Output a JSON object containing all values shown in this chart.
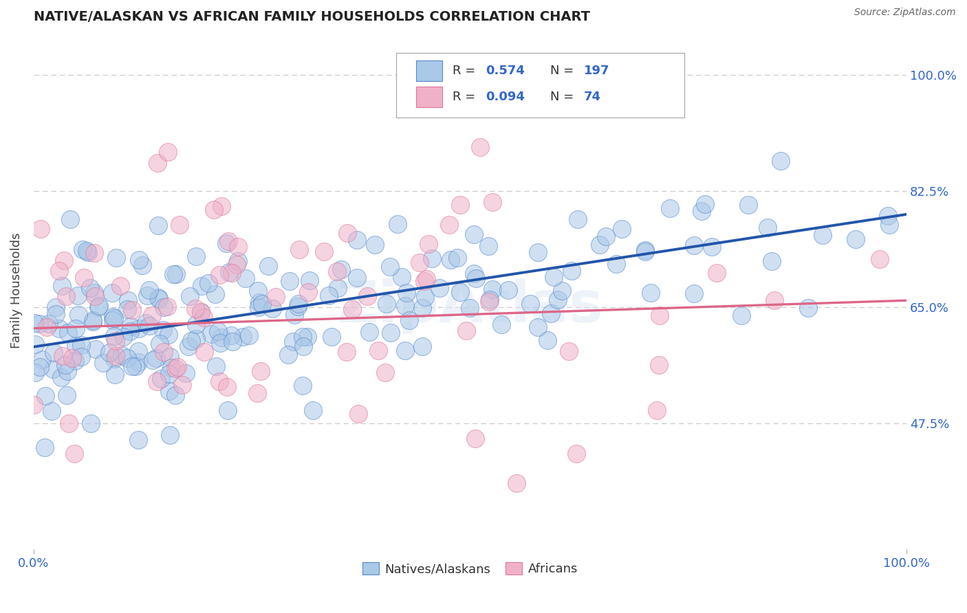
{
  "title": "NATIVE/ALASKAN VS AFRICAN FAMILY HOUSEHOLDS CORRELATION CHART",
  "source": "Source: ZipAtlas.com",
  "ylabel": "Family Households",
  "xlim": [
    0.0,
    1.0
  ],
  "ylim": [
    0.285,
    1.065
  ],
  "yticks": [
    0.475,
    0.65,
    0.825,
    1.0
  ],
  "ytick_labels": [
    "47.5%",
    "65.0%",
    "82.5%",
    "100.0%"
  ],
  "xticks": [
    0.0,
    1.0
  ],
  "xtick_labels": [
    "0.0%",
    "100.0%"
  ],
  "blue_R": 0.574,
  "blue_N": 197,
  "pink_R": 0.094,
  "pink_N": 74,
  "blue_dot_face": "#aac8e8",
  "blue_dot_edge": "#5588cc",
  "pink_dot_face": "#f0b0c8",
  "pink_dot_edge": "#dd7799",
  "blue_line_color": "#2255aa",
  "pink_line_color": "#dd6688",
  "title_color": "#222222",
  "axis_color": "#3366cc",
  "grid_color": "#cccccc",
  "watermark_text": "ZipAtlas",
  "legend_label_blue": "Natives/Alaskans",
  "legend_label_pink": "Africans",
  "blue_slope": 0.2,
  "blue_intercept": 0.59,
  "pink_slope": 0.042,
  "pink_intercept": 0.618,
  "dot_size": 350,
  "dot_alpha": 0.55
}
